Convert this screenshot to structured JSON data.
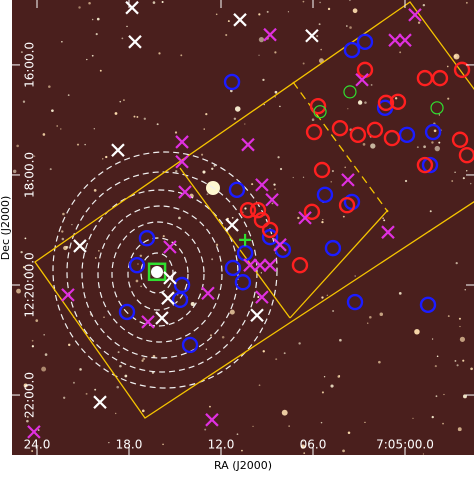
{
  "chart_data": {
    "type": "scatter",
    "xlabel": "RA (J2000)",
    "ylabel": "Dec (J2000)",
    "xlim": [
      25.63,
      -4.5
    ],
    "ylim": [
      -23.09,
      -14.82
    ],
    "xticks": [
      {
        "value": 24,
        "label": "24.0"
      },
      {
        "value": 18,
        "label": "18.0"
      },
      {
        "value": 12,
        "label": "12.0"
      },
      {
        "value": 6,
        "label": "06.0"
      },
      {
        "value": 0,
        "label": "7:05:00.0"
      }
    ],
    "yticks": [
      {
        "value": -16,
        "label": "16:00.0"
      },
      {
        "value": -18,
        "label": "18:00.0"
      },
      {
        "value": -20,
        "label": "12:20:00.0"
      },
      {
        "value": -22,
        "label": "22:00.0"
      }
    ],
    "series": [
      {
        "marker": "circle",
        "color": "#1c1cff",
        "x": [
          11.28,
          2.61,
          3.46,
          1.3,
          -1.83,
          -0.13,
          -1.63,
          10.96,
          5.22,
          3.46,
          8.8,
          7.96,
          4.7,
          10.43,
          16.83,
          11.22,
          10.57,
          17.48,
          14.54,
          14.67,
          18.13,
          14.02,
          3.26,
          -1.5
        ],
        "values": [
          -16.31,
          -15.58,
          -15.73,
          -16.78,
          -17.22,
          -17.27,
          -17.82,
          -18.27,
          -18.36,
          -18.49,
          -19.13,
          -19.36,
          -19.33,
          -19.42,
          -19.15,
          -19.69,
          -19.95,
          -19.64,
          -20.0,
          -20.27,
          -20.49,
          -21.09,
          -20.31,
          -20.36
        ]
      },
      {
        "marker": "circle",
        "color": "#ff2020",
        "x": [
          2.61,
          -1.3,
          -2.28,
          -3.72,
          0.46,
          1.24,
          5.67,
          5.93,
          4.24,
          3.07,
          1.96,
          0.85,
          -3.59,
          -4.04,
          -1.3,
          5.41,
          3.78,
          6.07,
          10.24,
          9.59,
          9.33,
          8.8,
          6.85
        ],
        "values": [
          -16.09,
          -16.24,
          -16.24,
          -16.09,
          -16.67,
          -16.69,
          -16.75,
          -17.22,
          -17.15,
          -17.27,
          -17.18,
          -17.33,
          -17.36,
          -17.64,
          -17.82,
          -17.91,
          -18.55,
          -18.67,
          -18.64,
          -18.64,
          -18.82,
          -19.0,
          -19.64
        ]
      },
      {
        "marker": "circle-small",
        "color": "#30e030",
        "x": [
          3.59,
          -2.09,
          5.54
        ],
        "values": [
          -16.49,
          -16.78,
          -16.85
        ]
      },
      {
        "marker": "square",
        "color": "#30e030",
        "x": [
          16.17
        ],
        "values": [
          -19.76
        ]
      },
      {
        "marker": "plus",
        "color": "#30e030",
        "x": [
          10.43
        ],
        "values": [
          -19.18
        ]
      },
      {
        "marker": "cross",
        "color": "#e030e0",
        "x": [
          -0.65,
          0.65,
          0,
          8.8,
          2.8,
          14.54,
          10.24,
          14.54,
          14.35,
          3.72,
          9.33,
          8.67,
          6.52,
          1.11,
          8.15,
          10.11,
          9.46,
          8.8,
          15.33,
          12.85,
          9.33,
          16.76,
          21.98,
          12.59,
          24.2
        ],
        "values": [
          -15.09,
          -15.55,
          -15.55,
          -15.45,
          -16.27,
          -17.4,
          -17.45,
          -17.76,
          -18.31,
          -18.09,
          -18.18,
          -18.45,
          -18.78,
          -19.04,
          -19.27,
          -19.64,
          -19.64,
          -19.64,
          -19.31,
          -20.15,
          -20.22,
          -20.67,
          -20.18,
          -22.45,
          -22.67
        ]
      },
      {
        "marker": "cross",
        "color": "#ffffff",
        "x": [
          17.8,
          10.76,
          6.07,
          17.61,
          18.72,
          21.2,
          15.33,
          11.28,
          15.46,
          15.85,
          19.89,
          9.65
        ],
        "values": [
          -14.96,
          -15.18,
          -15.47,
          -15.58,
          -17.55,
          -19.29,
          -19.87,
          -18.91,
          -20.24,
          -20.6,
          -22.13,
          -20.55
        ]
      }
    ]
  }
}
